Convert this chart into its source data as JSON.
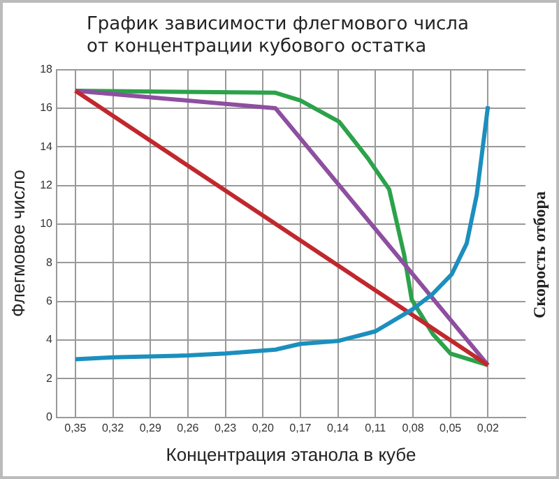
{
  "chart_data": {
    "type": "line",
    "title": "График зависимости флегмового числа\nот концентрации кубового остатка",
    "xlabel": "Концентрация этанола в кубе",
    "ylabel": "Флегмовое число",
    "y2label": "Скорость отбора",
    "xlim": [
      0.365,
      -0.01
    ],
    "xticks": [
      {
        "value": 0.35,
        "label": "0,35"
      },
      {
        "value": 0.32,
        "label": "0,32"
      },
      {
        "value": 0.29,
        "label": "0,29"
      },
      {
        "value": 0.26,
        "label": "0,26"
      },
      {
        "value": 0.23,
        "label": "0,23"
      },
      {
        "value": 0.2,
        "label": "0,20"
      },
      {
        "value": 0.17,
        "label": "0,17"
      },
      {
        "value": 0.14,
        "label": "0,14"
      },
      {
        "value": 0.11,
        "label": "0,11"
      },
      {
        "value": 0.08,
        "label": "0,08"
      },
      {
        "value": 0.05,
        "label": "0,05"
      },
      {
        "value": 0.02,
        "label": "0,02"
      }
    ],
    "ylim": [
      0,
      18
    ],
    "yticks": [
      0,
      2,
      4,
      6,
      8,
      10,
      12,
      14,
      16,
      18
    ],
    "grid": true,
    "legend": false,
    "marker": "none",
    "line_style": "solid",
    "series": [
      {
        "color": "#1b8fbe",
        "x": [
          0.35,
          0.32,
          0.26,
          0.23,
          0.19,
          0.17,
          0.14,
          0.11,
          0.08,
          0.064,
          0.049,
          0.037,
          0.029,
          0.02
        ],
        "values": [
          3.0,
          3.1,
          3.2,
          3.3,
          3.5,
          3.8,
          3.95,
          4.45,
          5.6,
          6.4,
          7.4,
          9.0,
          11.5,
          16.1
        ]
      },
      {
        "color": "#c0282d",
        "x": [
          0.35,
          0.02
        ],
        "values": [
          16.9,
          2.7
        ]
      },
      {
        "color": "#8e4fa0",
        "x": [
          0.35,
          0.19,
          0.02
        ],
        "values": [
          16.9,
          16.0,
          2.7
        ]
      },
      {
        "color": "#2ca24a",
        "x": [
          0.35,
          0.19,
          0.17,
          0.139,
          0.116,
          0.099,
          0.087,
          0.081,
          0.064,
          0.05,
          0.02
        ],
        "values": [
          16.9,
          16.8,
          16.4,
          15.3,
          13.4,
          11.8,
          8.4,
          6.1,
          4.3,
          3.3,
          2.7
        ]
      }
    ]
  }
}
